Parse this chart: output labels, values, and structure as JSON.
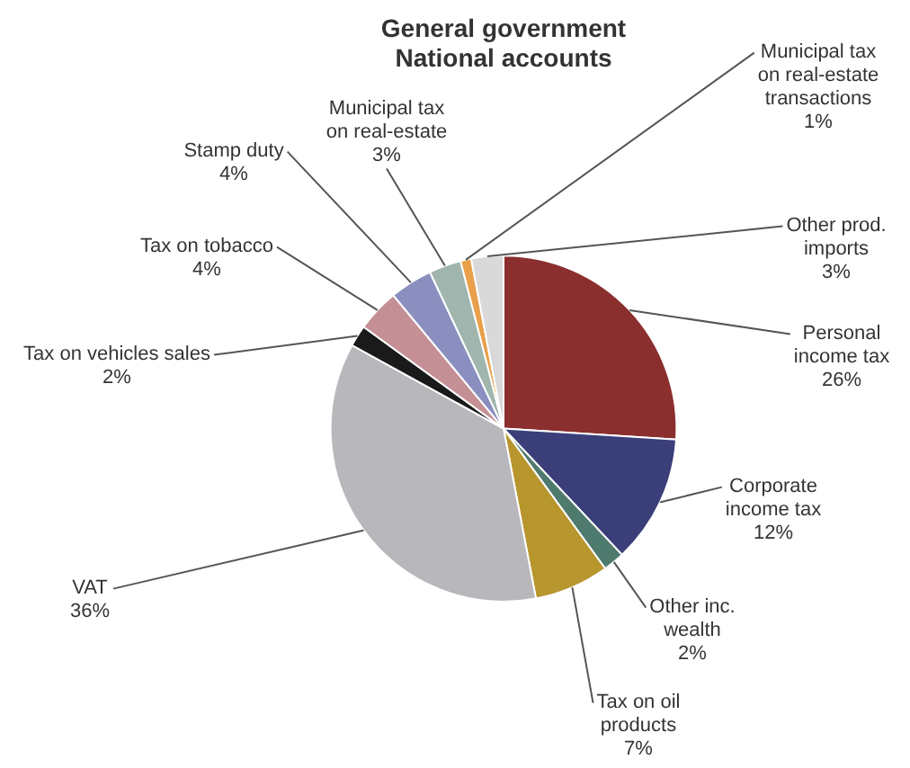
{
  "chart_data": {
    "type": "pie",
    "title": "General government National accounts",
    "categories": [
      "Personal income tax",
      "Corporate income tax",
      "Other inc. wealth",
      "Tax on oil products",
      "VAT",
      "Tax on vehicles sales",
      "Tax on tobacco",
      "Stamp duty",
      "Municipal tax on real-estate",
      "Municipal tax on real-estate transactions",
      "Other prod. imports"
    ],
    "values": [
      26,
      12,
      2,
      7,
      36,
      2,
      4,
      4,
      3,
      1,
      3
    ],
    "value_labels": [
      "26%",
      "12%",
      "2%",
      "7%",
      "36%",
      "2%",
      "4%",
      "4%",
      "3%",
      "1%",
      "3%"
    ],
    "colors": [
      "#8b2e2e",
      "#3a3f7a",
      "#4f7a6e",
      "#b8962e",
      "#b8b8bc",
      "#1a1a1a",
      "#c48f95",
      "#8a8fbf",
      "#9fb5ad",
      "#e8a04a",
      "#d9d9d9"
    ],
    "legend": false
  }
}
